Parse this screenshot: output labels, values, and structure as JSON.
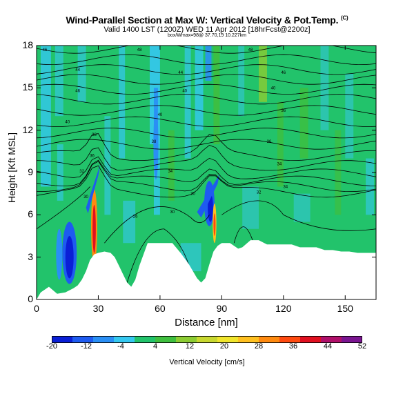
{
  "chart_data": {
    "type": "heatmap",
    "title": "Wind-Parallel Section at Max W: Vertical Velocity & Pot.Temp.",
    "title_tag": "(C)",
    "subtitle": "Valid 1400 LST (1200Z) WED 11 Apr 2012 [18hrFcst@2200z]",
    "subtitle2": "box/Wmax=98@ 37.70,19 10.227km",
    "xlabel": "Distance [nm]",
    "ylabel": "Height [Kft MSL]",
    "xlim": [
      0,
      165
    ],
    "ylim": [
      0,
      18
    ],
    "xticks": [
      "0",
      "30",
      "60",
      "90",
      "120",
      "150"
    ],
    "xtick_values": [
      0,
      30,
      60,
      90,
      120,
      150
    ],
    "yticks": [
      "0",
      "3",
      "6",
      "9",
      "12",
      "15",
      "18"
    ],
    "ytick_values": [
      0,
      3,
      6,
      9,
      12,
      15,
      18
    ],
    "colorbar": {
      "label": "Vertical Velocity [cm/s]",
      "ticks": [
        "-20",
        "-12",
        "-4",
        "4",
        "12",
        "20",
        "28",
        "36",
        "44",
        "52"
      ],
      "colors": [
        "#0a1fd6",
        "#1e5bf0",
        "#2a8ff5",
        "#35c8f0",
        "#22c36b",
        "#3fbf3f",
        "#8ccc33",
        "#c8d830",
        "#f0e52c",
        "#ffc020",
        "#ff8a10",
        "#ff4a10",
        "#e01020",
        "#b0106a",
        "#7a1590"
      ]
    },
    "terrain": {
      "x": [
        0,
        2,
        6,
        10,
        14,
        18,
        20,
        22,
        24,
        26,
        28,
        30,
        33,
        36,
        38,
        40,
        42,
        44,
        46,
        48,
        50,
        54,
        60,
        66,
        70,
        74,
        78,
        80,
        82,
        84,
        86,
        88,
        90,
        94,
        98,
        100,
        104,
        108,
        112,
        116,
        120,
        124,
        128,
        132,
        136,
        140,
        144,
        148,
        152,
        156,
        160,
        165
      ],
      "y": [
        0,
        0.5,
        0.9,
        0.4,
        0.5,
        0.8,
        1.0,
        1.4,
        2.0,
        2.8,
        3.2,
        3.3,
        3.4,
        3.3,
        3.0,
        2.4,
        1.8,
        1.2,
        0.9,
        1.4,
        2.4,
        4.0,
        4.0,
        4.0,
        3.3,
        2.5,
        1.5,
        1.2,
        1.5,
        2.5,
        3.4,
        3.8,
        4.0,
        4.0,
        3.6,
        3.7,
        4.2,
        4.2,
        3.9,
        3.9,
        3.9,
        3.9,
        3.7,
        3.7,
        3.7,
        3.5,
        3.5,
        3.4,
        3.4,
        3.3,
        3.3,
        3.3
      ]
    },
    "isentrope_labels": [
      "46",
      "48",
      "48",
      "44",
      "44",
      "46",
      "46",
      "40",
      "40",
      "40",
      "40",
      "36",
      "38",
      "38",
      "36",
      "36",
      "34",
      "32",
      "34",
      "34",
      "30",
      "30",
      "26",
      "30",
      "32"
    ]
  }
}
